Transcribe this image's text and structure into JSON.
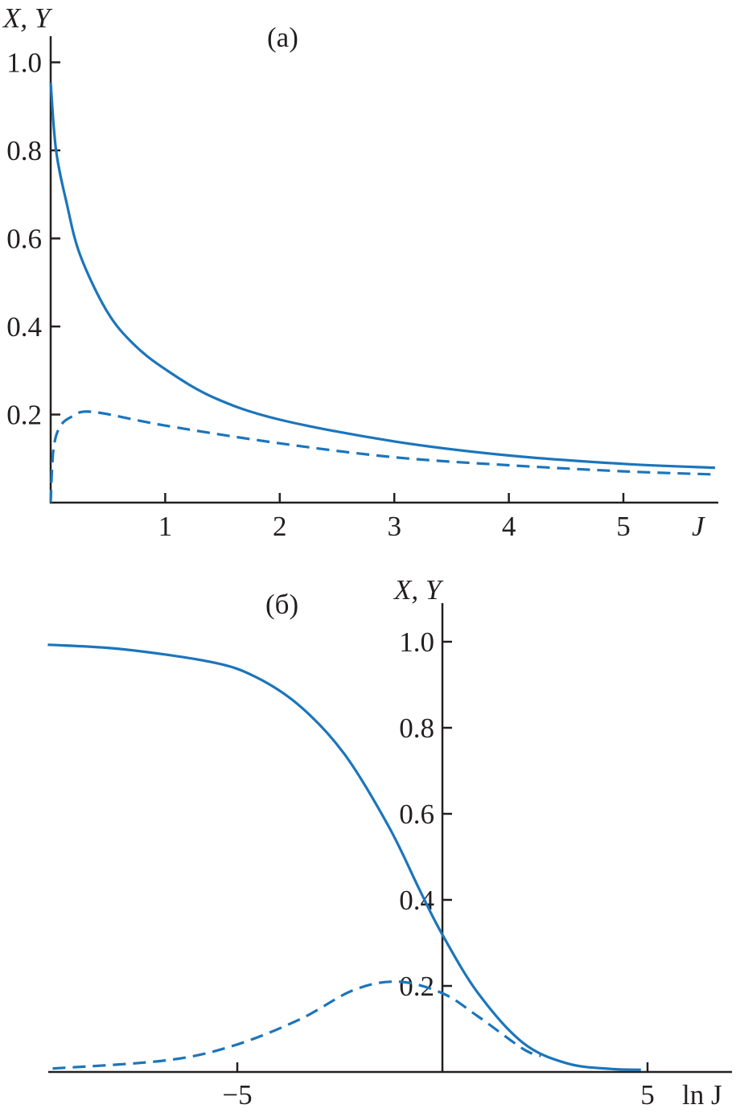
{
  "chart_data": [
    {
      "type": "line",
      "panel_label": "(a)",
      "ylabel": "X, Y",
      "xlabel": "J",
      "xlim": [
        0,
        5.85
      ],
      "ylim": [
        0,
        1.05
      ],
      "xticks": [
        1,
        2,
        3,
        4,
        5
      ],
      "xtick_labels": [
        "1",
        "2",
        "3",
        "4",
        "5"
      ],
      "yticks": [
        0.2,
        0.4,
        0.6,
        0.8,
        1.0
      ],
      "ytick_labels": [
        "0.2",
        "0.4",
        "0.6",
        "0.8",
        "1.0"
      ],
      "grid": false,
      "color": "#1b75bb",
      "series": [
        {
          "style": "solid",
          "x": [
            0,
            0.047,
            0.14,
            0.256,
            0.49,
            0.72,
            1.0,
            1.42,
            1.99,
            3,
            4,
            5,
            5.8
          ],
          "y": [
            0.954,
            0.8,
            0.68,
            0.563,
            0.435,
            0.361,
            0.303,
            0.239,
            0.189,
            0.139,
            0.107,
            0.088,
            0.079
          ]
        },
        {
          "style": "dashed",
          "x": [
            0,
            0.023,
            0.08,
            0.19,
            0.37,
            1.0,
            1.99,
            3,
            4,
            5,
            5.8
          ],
          "y": [
            0,
            0.118,
            0.172,
            0.196,
            0.206,
            0.175,
            0.135,
            0.103,
            0.085,
            0.071,
            0.064
          ]
        }
      ]
    },
    {
      "type": "line",
      "panel_label": "(б)",
      "ylabel": "X, Y",
      "xlabel": "ln J",
      "xlim": [
        -9.6,
        7.05
      ],
      "ylim": [
        0,
        1.08
      ],
      "xticks": [
        -5,
        5
      ],
      "xtick_labels": [
        "−5",
        "5"
      ],
      "yticks": [
        0.2,
        0.4,
        0.6,
        0.8,
        1.0
      ],
      "ytick_labels": [
        "0.2",
        "0.4",
        "0.6",
        "0.8",
        "1.0"
      ],
      "grid": false,
      "color": "#1b75bb",
      "series": [
        {
          "style": "solid",
          "x": [
            -9.62,
            -7.83,
            -5.65,
            -4.57,
            -3.48,
            -2.39,
            -1.3,
            -0.54,
            0,
            0.87,
            1.96,
            3.04,
            4.13,
            4.84
          ],
          "y": [
            0.993,
            0.983,
            0.953,
            0.919,
            0.851,
            0.739,
            0.569,
            0.42,
            0.319,
            0.183,
            0.068,
            0.02,
            0.007,
            0.005
          ]
        },
        {
          "style": "dashed",
          "x": [
            -9.5,
            -6.74,
            -5.1,
            -3.48,
            -2.17,
            -1.09,
            0,
            0.87,
            1.96,
            2.4
          ],
          "y": [
            0.008,
            0.027,
            0.061,
            0.122,
            0.19,
            0.21,
            0.183,
            0.129,
            0.054,
            0.037
          ]
        }
      ]
    }
  ]
}
